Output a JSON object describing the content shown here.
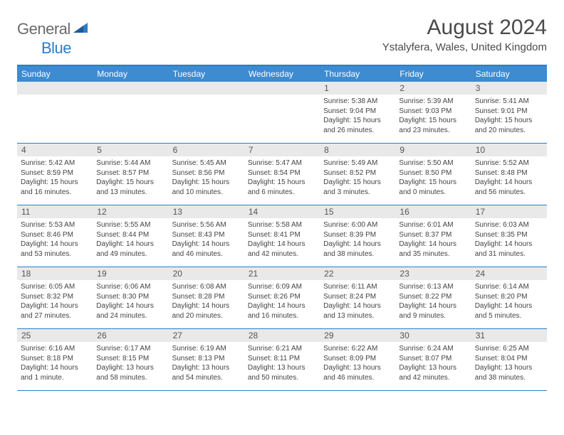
{
  "logo": {
    "text1": "General",
    "text2": "Blue"
  },
  "title": "August 2024",
  "subtitle": "Ystalyfera, Wales, United Kingdom",
  "colors": {
    "header_bg": "#3d8bd0",
    "border": "#2f7cc4",
    "daynum_bg": "#e9e9e9",
    "logo_gray": "#6a6a6a",
    "logo_blue": "#2f7cc4",
    "text": "#444"
  },
  "weekdays": [
    "Sunday",
    "Monday",
    "Tuesday",
    "Wednesday",
    "Thursday",
    "Friday",
    "Saturday"
  ],
  "weeks": [
    [
      null,
      null,
      null,
      null,
      {
        "n": "1",
        "sr": "Sunrise: 5:38 AM",
        "ss": "Sunset: 9:04 PM",
        "d1": "Daylight: 15 hours",
        "d2": "and 26 minutes."
      },
      {
        "n": "2",
        "sr": "Sunrise: 5:39 AM",
        "ss": "Sunset: 9:03 PM",
        "d1": "Daylight: 15 hours",
        "d2": "and 23 minutes."
      },
      {
        "n": "3",
        "sr": "Sunrise: 5:41 AM",
        "ss": "Sunset: 9:01 PM",
        "d1": "Daylight: 15 hours",
        "d2": "and 20 minutes."
      }
    ],
    [
      {
        "n": "4",
        "sr": "Sunrise: 5:42 AM",
        "ss": "Sunset: 8:59 PM",
        "d1": "Daylight: 15 hours",
        "d2": "and 16 minutes."
      },
      {
        "n": "5",
        "sr": "Sunrise: 5:44 AM",
        "ss": "Sunset: 8:57 PM",
        "d1": "Daylight: 15 hours",
        "d2": "and 13 minutes."
      },
      {
        "n": "6",
        "sr": "Sunrise: 5:45 AM",
        "ss": "Sunset: 8:56 PM",
        "d1": "Daylight: 15 hours",
        "d2": "and 10 minutes."
      },
      {
        "n": "7",
        "sr": "Sunrise: 5:47 AM",
        "ss": "Sunset: 8:54 PM",
        "d1": "Daylight: 15 hours",
        "d2": "and 6 minutes."
      },
      {
        "n": "8",
        "sr": "Sunrise: 5:49 AM",
        "ss": "Sunset: 8:52 PM",
        "d1": "Daylight: 15 hours",
        "d2": "and 3 minutes."
      },
      {
        "n": "9",
        "sr": "Sunrise: 5:50 AM",
        "ss": "Sunset: 8:50 PM",
        "d1": "Daylight: 15 hours",
        "d2": "and 0 minutes."
      },
      {
        "n": "10",
        "sr": "Sunrise: 5:52 AM",
        "ss": "Sunset: 8:48 PM",
        "d1": "Daylight: 14 hours",
        "d2": "and 56 minutes."
      }
    ],
    [
      {
        "n": "11",
        "sr": "Sunrise: 5:53 AM",
        "ss": "Sunset: 8:46 PM",
        "d1": "Daylight: 14 hours",
        "d2": "and 53 minutes."
      },
      {
        "n": "12",
        "sr": "Sunrise: 5:55 AM",
        "ss": "Sunset: 8:44 PM",
        "d1": "Daylight: 14 hours",
        "d2": "and 49 minutes."
      },
      {
        "n": "13",
        "sr": "Sunrise: 5:56 AM",
        "ss": "Sunset: 8:43 PM",
        "d1": "Daylight: 14 hours",
        "d2": "and 46 minutes."
      },
      {
        "n": "14",
        "sr": "Sunrise: 5:58 AM",
        "ss": "Sunset: 8:41 PM",
        "d1": "Daylight: 14 hours",
        "d2": "and 42 minutes."
      },
      {
        "n": "15",
        "sr": "Sunrise: 6:00 AM",
        "ss": "Sunset: 8:39 PM",
        "d1": "Daylight: 14 hours",
        "d2": "and 38 minutes."
      },
      {
        "n": "16",
        "sr": "Sunrise: 6:01 AM",
        "ss": "Sunset: 8:37 PM",
        "d1": "Daylight: 14 hours",
        "d2": "and 35 minutes."
      },
      {
        "n": "17",
        "sr": "Sunrise: 6:03 AM",
        "ss": "Sunset: 8:35 PM",
        "d1": "Daylight: 14 hours",
        "d2": "and 31 minutes."
      }
    ],
    [
      {
        "n": "18",
        "sr": "Sunrise: 6:05 AM",
        "ss": "Sunset: 8:32 PM",
        "d1": "Daylight: 14 hours",
        "d2": "and 27 minutes."
      },
      {
        "n": "19",
        "sr": "Sunrise: 6:06 AM",
        "ss": "Sunset: 8:30 PM",
        "d1": "Daylight: 14 hours",
        "d2": "and 24 minutes."
      },
      {
        "n": "20",
        "sr": "Sunrise: 6:08 AM",
        "ss": "Sunset: 8:28 PM",
        "d1": "Daylight: 14 hours",
        "d2": "and 20 minutes."
      },
      {
        "n": "21",
        "sr": "Sunrise: 6:09 AM",
        "ss": "Sunset: 8:26 PM",
        "d1": "Daylight: 14 hours",
        "d2": "and 16 minutes."
      },
      {
        "n": "22",
        "sr": "Sunrise: 6:11 AM",
        "ss": "Sunset: 8:24 PM",
        "d1": "Daylight: 14 hours",
        "d2": "and 13 minutes."
      },
      {
        "n": "23",
        "sr": "Sunrise: 6:13 AM",
        "ss": "Sunset: 8:22 PM",
        "d1": "Daylight: 14 hours",
        "d2": "and 9 minutes."
      },
      {
        "n": "24",
        "sr": "Sunrise: 6:14 AM",
        "ss": "Sunset: 8:20 PM",
        "d1": "Daylight: 14 hours",
        "d2": "and 5 minutes."
      }
    ],
    [
      {
        "n": "25",
        "sr": "Sunrise: 6:16 AM",
        "ss": "Sunset: 8:18 PM",
        "d1": "Daylight: 14 hours",
        "d2": "and 1 minute."
      },
      {
        "n": "26",
        "sr": "Sunrise: 6:17 AM",
        "ss": "Sunset: 8:15 PM",
        "d1": "Daylight: 13 hours",
        "d2": "and 58 minutes."
      },
      {
        "n": "27",
        "sr": "Sunrise: 6:19 AM",
        "ss": "Sunset: 8:13 PM",
        "d1": "Daylight: 13 hours",
        "d2": "and 54 minutes."
      },
      {
        "n": "28",
        "sr": "Sunrise: 6:21 AM",
        "ss": "Sunset: 8:11 PM",
        "d1": "Daylight: 13 hours",
        "d2": "and 50 minutes."
      },
      {
        "n": "29",
        "sr": "Sunrise: 6:22 AM",
        "ss": "Sunset: 8:09 PM",
        "d1": "Daylight: 13 hours",
        "d2": "and 46 minutes."
      },
      {
        "n": "30",
        "sr": "Sunrise: 6:24 AM",
        "ss": "Sunset: 8:07 PM",
        "d1": "Daylight: 13 hours",
        "d2": "and 42 minutes."
      },
      {
        "n": "31",
        "sr": "Sunrise: 6:25 AM",
        "ss": "Sunset: 8:04 PM",
        "d1": "Daylight: 13 hours",
        "d2": "and 38 minutes."
      }
    ]
  ]
}
